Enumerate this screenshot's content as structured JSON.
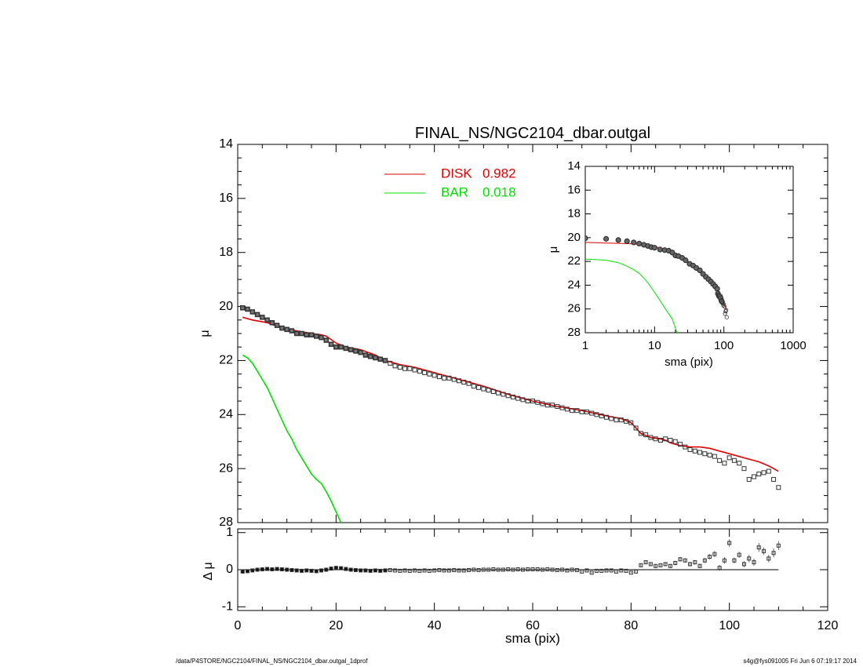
{
  "footer": {
    "path": "/data/P4STORE/NGC2104/FINAL_NS/NGC2104_dbar.outgal_1dprof",
    "user_time": "s4g@fys091005  Fri Jun  6 07:19:17 2014"
  },
  "chart_data": [
    {
      "id": "main",
      "type": "line",
      "title": "FINAL_NS/NGC2104_dbar.outgal",
      "xlabel": "",
      "ylabel": "μ",
      "xlim": [
        0,
        120
      ],
      "ylim": [
        28,
        14
      ],
      "y_inverted": true,
      "grid": false,
      "legend_position": "top-center",
      "yticks": [
        14,
        16,
        18,
        20,
        22,
        24,
        26,
        28
      ],
      "series": [
        {
          "name": "DISK",
          "label_value": "0.982",
          "kind": "line",
          "color": "#e00000",
          "x": [
            1,
            3,
            6,
            9,
            12,
            15,
            17,
            18,
            20,
            22,
            25,
            28,
            30,
            33,
            36,
            40,
            45,
            50,
            55,
            60,
            65,
            70,
            75,
            78,
            80,
            81,
            82,
            84,
            86,
            87,
            88,
            90,
            92,
            94,
            96,
            98,
            100,
            102,
            104,
            106,
            108,
            110
          ],
          "y": [
            20.4,
            20.5,
            20.6,
            20.8,
            20.9,
            21.0,
            21.05,
            21.1,
            21.35,
            21.5,
            21.6,
            21.8,
            22.0,
            22.15,
            22.25,
            22.45,
            22.7,
            22.95,
            23.25,
            23.5,
            23.7,
            23.85,
            24.05,
            24.15,
            24.3,
            24.5,
            24.7,
            24.85,
            24.9,
            24.95,
            25.05,
            25.15,
            25.2,
            25.2,
            25.25,
            25.35,
            25.45,
            25.55,
            25.65,
            25.75,
            25.9,
            26.1
          ]
        },
        {
          "name": "BAR",
          "label_value": "0.018",
          "kind": "line",
          "color": "#00e000",
          "x": [
            1,
            2,
            3,
            4,
            5,
            6,
            7,
            8,
            9,
            10,
            11,
            12,
            13,
            14,
            15,
            16,
            17,
            18,
            19,
            20,
            21
          ],
          "y": [
            21.8,
            21.9,
            22.1,
            22.4,
            22.7,
            23.0,
            23.4,
            23.8,
            24.2,
            24.6,
            24.9,
            25.3,
            25.6,
            25.9,
            26.2,
            26.4,
            26.55,
            26.85,
            27.2,
            27.6,
            28.0
          ]
        },
        {
          "name": "",
          "kind": "points",
          "color": "#000000",
          "x": [
            1,
            2,
            3,
            4,
            5,
            6,
            7,
            8,
            9,
            10,
            11,
            12,
            13,
            14,
            15,
            16,
            17,
            18,
            19,
            20,
            21,
            22,
            23,
            24,
            25,
            26,
            27,
            28,
            29,
            30,
            31,
            32,
            33,
            34,
            35,
            36,
            37,
            38,
            39,
            40,
            41,
            42,
            43,
            44,
            45,
            46,
            47,
            48,
            49,
            50,
            51,
            52,
            53,
            54,
            55,
            56,
            57,
            58,
            59,
            60,
            61,
            62,
            63,
            64,
            65,
            66,
            67,
            68,
            69,
            70,
            71,
            72,
            73,
            74,
            75,
            76,
            77,
            78,
            79,
            80,
            81,
            82,
            83,
            84,
            85,
            86,
            87,
            88,
            89,
            90,
            91,
            92,
            93,
            94,
            95,
            96,
            97,
            98,
            99,
            100,
            101,
            102,
            103,
            104,
            105,
            106,
            107,
            108,
            109,
            110
          ],
          "y": [
            20.05,
            20.1,
            20.2,
            20.3,
            20.4,
            20.5,
            20.6,
            20.7,
            20.8,
            20.85,
            20.9,
            21.0,
            21.0,
            21.05,
            21.05,
            21.1,
            21.15,
            21.25,
            21.4,
            21.5,
            21.5,
            21.55,
            21.6,
            21.65,
            21.7,
            21.8,
            21.85,
            21.9,
            21.95,
            22.0,
            22.1,
            22.2,
            22.25,
            22.3,
            22.3,
            22.35,
            22.4,
            22.45,
            22.5,
            22.55,
            22.6,
            22.65,
            22.65,
            22.7,
            22.75,
            22.8,
            22.85,
            22.95,
            23.0,
            23.05,
            23.1,
            23.15,
            23.2,
            23.25,
            23.3,
            23.35,
            23.4,
            23.45,
            23.5,
            23.5,
            23.55,
            23.6,
            23.65,
            23.65,
            23.7,
            23.75,
            23.8,
            23.85,
            23.85,
            23.9,
            23.9,
            23.95,
            24.0,
            24.05,
            24.1,
            24.15,
            24.2,
            24.2,
            24.25,
            24.3,
            24.5,
            24.7,
            24.75,
            24.85,
            24.9,
            24.95,
            24.9,
            24.95,
            25.0,
            25.1,
            25.2,
            25.3,
            25.35,
            25.4,
            25.45,
            25.5,
            25.55,
            25.7,
            25.8,
            25.6,
            25.7,
            25.8,
            26.0,
            26.4,
            26.3,
            26.2,
            26.15,
            26.1,
            26.4,
            26.7
          ]
        }
      ]
    },
    {
      "id": "residual",
      "type": "scatter",
      "xlabel": "sma (pix)",
      "ylabel": "Δ μ",
      "xlim": [
        0,
        120
      ],
      "ylim": [
        -1.1,
        1.1
      ],
      "yticks": [
        -1,
        0,
        1
      ],
      "xticks": [
        0,
        20,
        40,
        60,
        80,
        100,
        120
      ],
      "grid": false,
      "series": [
        {
          "name": "",
          "kind": "points",
          "color": "#000000",
          "x": [
            1,
            2,
            3,
            4,
            5,
            6,
            7,
            8,
            9,
            10,
            11,
            12,
            13,
            14,
            15,
            16,
            17,
            18,
            19,
            20,
            21,
            22,
            23,
            24,
            25,
            26,
            27,
            28,
            29,
            30,
            31,
            32,
            33,
            34,
            35,
            36,
            37,
            38,
            39,
            40,
            41,
            42,
            43,
            44,
            45,
            46,
            47,
            48,
            49,
            50,
            51,
            52,
            53,
            54,
            55,
            56,
            57,
            58,
            59,
            60,
            61,
            62,
            63,
            64,
            65,
            66,
            67,
            68,
            69,
            70,
            71,
            72,
            73,
            74,
            75,
            76,
            77,
            78,
            79,
            80,
            81,
            82,
            83,
            84,
            85,
            86,
            87,
            88,
            89,
            90,
            91,
            92,
            93,
            94,
            95,
            96,
            97,
            98,
            99,
            100,
            101,
            102,
            103,
            104,
            105,
            106,
            107,
            108,
            109,
            110
          ],
          "y": [
            -0.05,
            -0.04,
            -0.02,
            0.0,
            0.01,
            0.02,
            0.01,
            0.02,
            0.01,
            0.0,
            -0.01,
            -0.02,
            -0.03,
            -0.02,
            -0.03,
            -0.04,
            -0.02,
            0.0,
            0.03,
            0.05,
            0.04,
            0.02,
            0.0,
            -0.01,
            -0.02,
            -0.02,
            -0.03,
            -0.02,
            -0.03,
            -0.02,
            -0.01,
            -0.02,
            -0.03,
            -0.02,
            -0.03,
            -0.02,
            -0.03,
            -0.02,
            -0.03,
            -0.02,
            -0.01,
            -0.02,
            -0.02,
            -0.01,
            -0.02,
            -0.02,
            -0.01,
            0.0,
            -0.01,
            0.0,
            0.0,
            0.01,
            0.0,
            0.0,
            0.01,
            0.0,
            0.01,
            0.0,
            0.01,
            0.01,
            0.01,
            0.0,
            0.01,
            0.0,
            -0.01,
            0.0,
            -0.02,
            0.0,
            -0.01,
            -0.05,
            -0.02,
            -0.08,
            -0.03,
            -0.03,
            -0.02,
            -0.02,
            -0.05,
            -0.02,
            -0.03,
            -0.08,
            -0.05,
            0.12,
            0.2,
            0.15,
            0.1,
            0.12,
            0.15,
            0.1,
            0.18,
            0.28,
            0.25,
            0.15,
            0.2,
            0.1,
            0.25,
            0.35,
            0.42,
            0.05,
            0.25,
            0.72,
            0.25,
            0.4,
            0.15,
            0.3,
            0.2,
            0.6,
            0.5,
            0.3,
            0.45,
            0.65
          ],
          "yerr": [
            0.02,
            0.02,
            0.02,
            0.02,
            0.02,
            0.02,
            0.02,
            0.02,
            0.02,
            0.02,
            0.02,
            0.02,
            0.02,
            0.02,
            0.02,
            0.02,
            0.02,
            0.02,
            0.02,
            0.02,
            0.02,
            0.02,
            0.02,
            0.02,
            0.02,
            0.02,
            0.02,
            0.02,
            0.02,
            0.02,
            0.02,
            0.02,
            0.02,
            0.02,
            0.02,
            0.02,
            0.02,
            0.02,
            0.02,
            0.02,
            0.02,
            0.02,
            0.02,
            0.02,
            0.02,
            0.02,
            0.02,
            0.02,
            0.02,
            0.02,
            0.02,
            0.02,
            0.02,
            0.02,
            0.02,
            0.02,
            0.02,
            0.02,
            0.02,
            0.02,
            0.02,
            0.02,
            0.02,
            0.02,
            0.02,
            0.02,
            0.02,
            0.02,
            0.02,
            0.02,
            0.02,
            0.02,
            0.02,
            0.02,
            0.02,
            0.02,
            0.02,
            0.02,
            0.02,
            0.02,
            0.02,
            0.05,
            0.05,
            0.05,
            0.05,
            0.05,
            0.05,
            0.05,
            0.06,
            0.06,
            0.06,
            0.06,
            0.06,
            0.06,
            0.07,
            0.07,
            0.08,
            0.08,
            0.09,
            0.1,
            0.08,
            0.08,
            0.08,
            0.1,
            0.1,
            0.12,
            0.1,
            0.1,
            0.12,
            0.12
          ],
          "zero_line": 0
        }
      ]
    },
    {
      "id": "inset",
      "type": "line",
      "xlabel": "sma (pix)",
      "ylabel": "μ",
      "xscale": "log",
      "xlim": [
        1,
        1000
      ],
      "ylim": [
        28,
        14
      ],
      "y_inverted": true,
      "yticks": [
        14,
        16,
        18,
        20,
        22,
        24,
        26,
        28
      ],
      "xticks": [
        1,
        10,
        100,
        1000
      ],
      "xtick_labels": [
        "1",
        "10",
        "100",
        "1000"
      ],
      "grid": false,
      "series": [
        {
          "name": "DISK",
          "kind": "line",
          "color": "#e00000",
          "x": [
            1,
            2,
            4,
            7,
            10,
            15,
            20,
            30,
            40,
            50,
            60,
            70,
            80,
            90,
            100,
            110
          ],
          "y": [
            20.4,
            20.45,
            20.5,
            20.6,
            20.75,
            21.0,
            21.4,
            22.0,
            22.5,
            22.95,
            23.5,
            23.85,
            24.3,
            24.95,
            25.45,
            26.1
          ]
        },
        {
          "name": "BAR",
          "kind": "line",
          "color": "#00e000",
          "x": [
            1,
            2,
            3,
            4,
            5,
            6,
            7,
            8,
            10,
            12,
            14,
            16,
            18,
            20,
            21
          ],
          "y": [
            21.8,
            21.9,
            22.1,
            22.4,
            22.7,
            23.0,
            23.4,
            23.8,
            24.6,
            25.3,
            25.9,
            26.4,
            26.85,
            27.6,
            28.0
          ]
        },
        {
          "name": "",
          "kind": "points",
          "color": "#000000",
          "x": [
            1,
            2,
            3,
            4,
            5,
            6,
            7,
            8,
            9,
            10,
            12,
            14,
            16,
            18,
            20,
            22,
            25,
            28,
            32,
            36,
            40,
            45,
            50,
            55,
            60,
            65,
            70,
            75,
            80,
            82,
            84,
            86,
            88,
            90,
            92,
            94,
            96,
            98,
            100,
            102,
            104,
            106,
            108,
            110
          ],
          "y": [
            20.05,
            20.1,
            20.2,
            20.3,
            20.4,
            20.5,
            20.6,
            20.7,
            20.8,
            20.85,
            21.0,
            21.05,
            21.1,
            21.25,
            21.5,
            21.55,
            21.7,
            21.9,
            22.2,
            22.35,
            22.55,
            22.75,
            23.05,
            23.3,
            23.5,
            23.7,
            23.9,
            24.1,
            24.3,
            24.7,
            24.85,
            24.95,
            24.95,
            25.1,
            25.3,
            25.4,
            25.5,
            25.7,
            25.6,
            25.8,
            26.4,
            26.2,
            26.1,
            26.7
          ]
        }
      ]
    }
  ]
}
